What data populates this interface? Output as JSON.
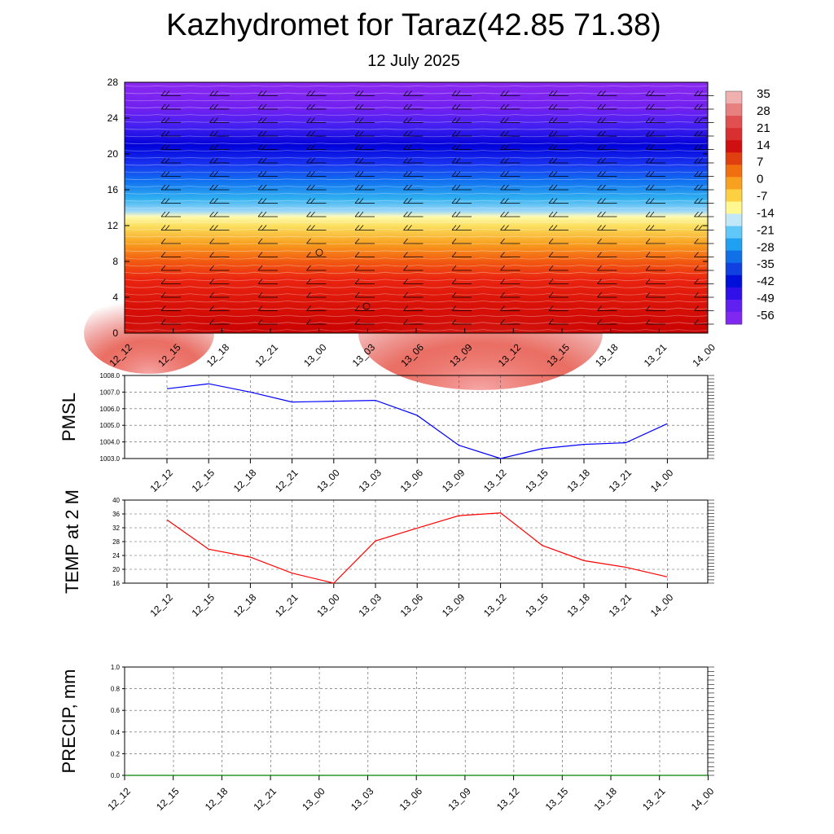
{
  "header": {
    "title": "Kazhydromet for Taraz(42.85 71.38)",
    "subtitle": "12 July 2025"
  },
  "colors": {
    "pmsl_line": "#0000ff",
    "temp_line": "#ff0000",
    "precip_line": "#008000",
    "wind_barb": "#000000",
    "contour_line": "#ffffff"
  },
  "chart_data": [
    {
      "type": "heatmap",
      "name": "temperature-height section",
      "x": [
        "12_12",
        "12_15",
        "12_18",
        "12_21",
        "13_00",
        "13_03",
        "13_06",
        "13_09",
        "13_12",
        "13_15",
        "13_18",
        "13_21",
        "14_00"
      ],
      "ylim": [
        0,
        28
      ],
      "y_ticks": [
        "0",
        "4",
        "8",
        "12",
        "16",
        "20",
        "24",
        "28"
      ],
      "colorbar": {
        "labels": [
          "35",
          "28",
          "21",
          "14",
          "7",
          "0",
          "-7",
          "-14",
          "-21",
          "-28",
          "-35",
          "-42",
          "-49",
          "-56"
        ],
        "range": [
          -63,
          42
        ]
      },
      "overlay": "wind barbs and white contour lines",
      "grid": false
    },
    {
      "type": "line",
      "ylabel": "PMSL",
      "x": [
        "12_12",
        "12_15",
        "12_18",
        "12_21",
        "13_00",
        "13_03",
        "13_06",
        "13_09",
        "13_12",
        "13_15",
        "13_18",
        "13_21",
        "14_00"
      ],
      "y_ticks": [
        "1003.0",
        "1004.0",
        "1005.0",
        "1006.0",
        "1007.0",
        "1008.0"
      ],
      "ylim": [
        1003.0,
        1008.0
      ],
      "series": [
        {
          "values": [
            1007.2,
            1007.5,
            1007.0,
            1006.4,
            1006.45,
            1006.5,
            1005.6,
            1003.8,
            1003.0,
            1003.6,
            1003.85,
            1003.95,
            1005.1
          ]
        }
      ],
      "grid": true
    },
    {
      "type": "line",
      "ylabel": "TEMP at 2 M",
      "x": [
        "12_12",
        "12_15",
        "12_18",
        "12_21",
        "13_00",
        "13_03",
        "13_06",
        "13_09",
        "13_12",
        "13_15",
        "13_18",
        "13_21",
        "14_00"
      ],
      "y_ticks": [
        "16",
        "20",
        "24",
        "28",
        "32",
        "36",
        "40"
      ],
      "ylim": [
        16,
        40
      ],
      "series": [
        {
          "values": [
            34.3,
            25.8,
            23.5,
            18.9,
            16.0,
            28.2,
            31.9,
            35.5,
            36.3,
            26.9,
            22.5,
            20.6,
            17.8
          ]
        }
      ],
      "grid": true
    },
    {
      "type": "line",
      "ylabel": "PRECIP, mm",
      "x": [
        "12_12",
        "12_15",
        "12_18",
        "12_21",
        "13_00",
        "13_03",
        "13_06",
        "13_09",
        "13_12",
        "13_15",
        "13_18",
        "13_21",
        "14_00"
      ],
      "y_ticks": [
        "0.0",
        "0.2",
        "0.4",
        "0.6",
        "0.8",
        "1.0"
      ],
      "ylim": [
        0.0,
        1.0
      ],
      "series": [
        {
          "values": [
            0,
            0,
            0,
            0,
            0,
            0,
            0,
            0,
            0,
            0,
            0,
            0,
            0
          ]
        }
      ],
      "grid": true
    }
  ]
}
